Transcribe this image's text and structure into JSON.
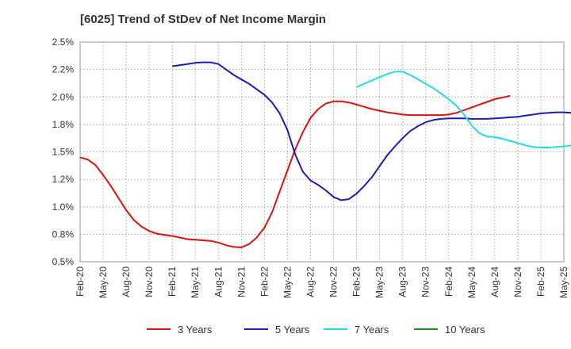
{
  "chart_data": {
    "type": "line",
    "title": "[6025]  Trend of StDev of Net Income Margin",
    "xlabel": "",
    "ylabel": "",
    "ylim": [
      0.5,
      2.5
    ],
    "grid": "dashed",
    "legend_position": "bottom",
    "y_ticks": [
      "2.5%",
      "2.2%",
      "2.0%",
      "1.8%",
      "1.5%",
      "1.2%",
      "1.0%",
      "0.8%",
      "0.5%"
    ],
    "y_tick_values": [
      2.5,
      2.25,
      2.0,
      1.75,
      1.5,
      1.25,
      1.0,
      0.75,
      0.5
    ],
    "x_ticks": [
      "Feb-20",
      "May-20",
      "Aug-20",
      "Nov-20",
      "Feb-21",
      "May-21",
      "Aug-21",
      "Nov-21",
      "Feb-22",
      "May-22",
      "Aug-22",
      "Nov-22",
      "Feb-23",
      "May-23",
      "Aug-23",
      "Nov-23",
      "Feb-24",
      "May-24",
      "Aug-24",
      "Nov-24",
      "Feb-25",
      "May-25"
    ],
    "series": [
      {
        "name": "3 Years",
        "color": "#dd1111",
        "points": [
          [
            0,
            1.45
          ],
          [
            1,
            1.43
          ],
          [
            2,
            1.38
          ],
          [
            3,
            1.29
          ],
          [
            4,
            1.19
          ],
          [
            5,
            1.08
          ],
          [
            6,
            0.97
          ],
          [
            7,
            0.88
          ],
          [
            8,
            0.82
          ],
          [
            9,
            0.78
          ],
          [
            10,
            0.755
          ],
          [
            11,
            0.745
          ],
          [
            12,
            0.735
          ],
          [
            13,
            0.72
          ],
          [
            14,
            0.705
          ],
          [
            15,
            0.7
          ],
          [
            16,
            0.695
          ],
          [
            17,
            0.69
          ],
          [
            18,
            0.675
          ],
          [
            19,
            0.65
          ],
          [
            20,
            0.635
          ],
          [
            21,
            0.63
          ],
          [
            22,
            0.66
          ],
          [
            23,
            0.72
          ],
          [
            24,
            0.81
          ],
          [
            25,
            0.95
          ],
          [
            26,
            1.14
          ],
          [
            27,
            1.33
          ],
          [
            28,
            1.52
          ],
          [
            29,
            1.68
          ],
          [
            30,
            1.81
          ],
          [
            31,
            1.89
          ],
          [
            32,
            1.94
          ],
          [
            33,
            1.96
          ],
          [
            34,
            1.96
          ],
          [
            35,
            1.95
          ],
          [
            36,
            1.93
          ],
          [
            37,
            1.91
          ],
          [
            38,
            1.89
          ],
          [
            39,
            1.875
          ],
          [
            40,
            1.86
          ],
          [
            41,
            1.85
          ],
          [
            42,
            1.84
          ],
          [
            43,
            1.835
          ],
          [
            44,
            1.835
          ],
          [
            45,
            1.835
          ],
          [
            46,
            1.835
          ],
          [
            47,
            1.835
          ],
          [
            48,
            1.84
          ],
          [
            49,
            1.855
          ],
          [
            50,
            1.88
          ],
          [
            51,
            1.905
          ],
          [
            52,
            1.93
          ],
          [
            53,
            1.955
          ],
          [
            54,
            1.98
          ],
          [
            55,
            1.995
          ],
          [
            56,
            2.01
          ]
        ]
      },
      {
        "name": "5 Years",
        "color": "#1c1cbb",
        "points": [
          [
            12,
            2.28
          ],
          [
            13,
            2.29
          ],
          [
            14,
            2.3
          ],
          [
            15,
            2.31
          ],
          [
            16,
            2.315
          ],
          [
            17,
            2.315
          ],
          [
            18,
            2.3
          ],
          [
            19,
            2.25
          ],
          [
            20,
            2.2
          ],
          [
            21,
            2.16
          ],
          [
            22,
            2.12
          ],
          [
            23,
            2.07
          ],
          [
            24,
            2.02
          ],
          [
            25,
            1.95
          ],
          [
            26,
            1.85
          ],
          [
            27,
            1.7
          ],
          [
            28,
            1.48
          ],
          [
            29,
            1.32
          ],
          [
            30,
            1.24
          ],
          [
            31,
            1.2
          ],
          [
            32,
            1.15
          ],
          [
            33,
            1.09
          ],
          [
            34,
            1.06
          ],
          [
            35,
            1.07
          ],
          [
            36,
            1.12
          ],
          [
            37,
            1.19
          ],
          [
            38,
            1.27
          ],
          [
            39,
            1.37
          ],
          [
            40,
            1.47
          ],
          [
            41,
            1.55
          ],
          [
            42,
            1.625
          ],
          [
            43,
            1.69
          ],
          [
            44,
            1.735
          ],
          [
            45,
            1.77
          ],
          [
            46,
            1.79
          ],
          [
            47,
            1.8
          ],
          [
            48,
            1.805
          ],
          [
            49,
            1.805
          ],
          [
            50,
            1.805
          ],
          [
            51,
            1.8
          ],
          [
            52,
            1.8
          ],
          [
            53,
            1.8
          ],
          [
            54,
            1.805
          ],
          [
            55,
            1.81
          ],
          [
            56,
            1.815
          ],
          [
            57,
            1.82
          ],
          [
            58,
            1.83
          ],
          [
            59,
            1.84
          ],
          [
            60,
            1.85
          ],
          [
            61,
            1.855
          ],
          [
            62,
            1.86
          ],
          [
            63,
            1.86
          ],
          [
            64,
            1.855
          ],
          [
            65,
            1.845
          ],
          [
            66,
            1.83
          ]
        ]
      },
      {
        "name": "7 Years",
        "color": "#22dddd",
        "points": [
          [
            36,
            2.09
          ],
          [
            37,
            2.12
          ],
          [
            38,
            2.15
          ],
          [
            39,
            2.18
          ],
          [
            40,
            2.21
          ],
          [
            41,
            2.23
          ],
          [
            42,
            2.23
          ],
          [
            43,
            2.2
          ],
          [
            44,
            2.16
          ],
          [
            45,
            2.12
          ],
          [
            46,
            2.08
          ],
          [
            47,
            2.03
          ],
          [
            48,
            1.98
          ],
          [
            49,
            1.92
          ],
          [
            50,
            1.84
          ],
          [
            51,
            1.74
          ],
          [
            52,
            1.67
          ],
          [
            53,
            1.64
          ],
          [
            54,
            1.635
          ],
          [
            55,
            1.62
          ],
          [
            56,
            1.6
          ],
          [
            57,
            1.58
          ],
          [
            58,
            1.56
          ],
          [
            59,
            1.545
          ],
          [
            60,
            1.54
          ],
          [
            61,
            1.54
          ],
          [
            62,
            1.545
          ],
          [
            63,
            1.55
          ],
          [
            64,
            1.56
          ],
          [
            65,
            1.565
          ],
          [
            66,
            1.57
          ]
        ]
      },
      {
        "name": "10 Years",
        "color": "#228822",
        "points": []
      }
    ]
  }
}
